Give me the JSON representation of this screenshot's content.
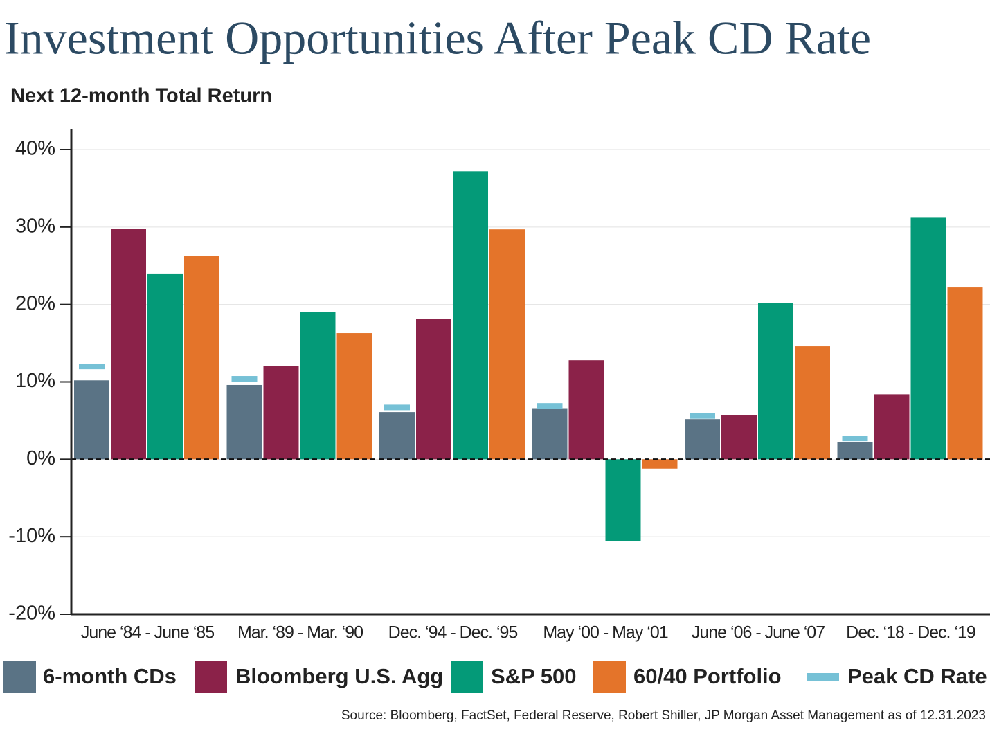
{
  "chart_data": {
    "type": "bar",
    "title": "Investment Opportunities After Peak CD Rate",
    "subtitle": "Next 12-month Total Return",
    "source": "Source: Bloomberg, FactSet, Federal Reserve, Robert Shiller, JP Morgan Asset Management as of 12.31.2023",
    "categories": [
      "June ‘84 - June ‘85",
      "Mar. ‘89 - Mar. ‘90",
      "Dec. ‘94 - Dec. ‘95",
      "May ‘00 - May ‘01",
      "June ‘06 - June ‘07",
      "Dec. ‘18 - Dec. ‘19"
    ],
    "series": [
      {
        "name": "6-month CDs",
        "color": "#5a7385",
        "values": [
          10.2,
          9.6,
          6.1,
          6.6,
          5.2,
          2.2
        ]
      },
      {
        "name": "Bloomberg U.S. Agg",
        "color": "#8b2249",
        "values": [
          29.8,
          12.1,
          18.1,
          12.8,
          5.7,
          8.4
        ]
      },
      {
        "name": "S&P 500",
        "color": "#049a78",
        "values": [
          24.0,
          19.0,
          37.2,
          -10.6,
          20.2,
          31.2
        ]
      },
      {
        "name": "60/40 Portfolio",
        "color": "#e4742a",
        "values": [
          26.3,
          16.3,
          29.7,
          -1.2,
          14.6,
          22.2
        ]
      },
      {
        "name": "Peak CD Rate",
        "color": "#76c1d6",
        "mark": "dash",
        "values": [
          12.0,
          10.4,
          6.7,
          6.9,
          5.6,
          2.7
        ]
      }
    ],
    "ylim": [
      -20,
      40
    ],
    "yticks": [
      {
        "value": -20,
        "label": "-20%"
      },
      {
        "value": -10,
        "label": "-10%"
      },
      {
        "value": 0,
        "label": "0%"
      },
      {
        "value": 10,
        "label": "10%"
      },
      {
        "value": 20,
        "label": "20%"
      },
      {
        "value": 30,
        "label": "30%"
      },
      {
        "value": 40,
        "label": "40%"
      }
    ],
    "grid": true,
    "zero_line": "dashed",
    "legend": "bottom"
  }
}
